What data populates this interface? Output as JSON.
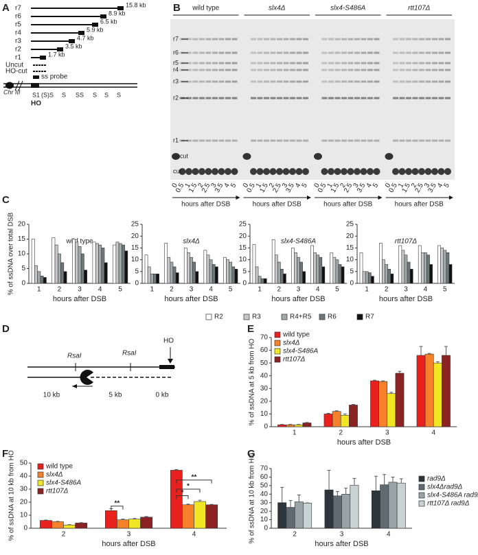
{
  "panel_labels": [
    "A",
    "B",
    "C",
    "D",
    "E",
    "F",
    "G"
  ],
  "diagram_a": {
    "rows": [
      "r7",
      "r6",
      "r5",
      "r4",
      "r3",
      "r2",
      "r1"
    ],
    "sizes": [
      "15.8 kb",
      "8.9 kb",
      "6.5 kb",
      "5.9 kb",
      "4.7 kb",
      "3.5 kb",
      "1.7 kb"
    ],
    "uncut": "Uncut",
    "ho_cut": "HO-cut",
    "probe": "ss probe",
    "chromosome": "Chr III",
    "sites": [
      "S",
      "1",
      "(S)",
      "S",
      "S",
      "S",
      "S",
      "S",
      "S",
      "S"
    ],
    "ho": "HO"
  },
  "gel": {
    "strains": [
      "wild type",
      "slx4Δ",
      "slx4-S486A",
      "rtt107Δ"
    ],
    "bands": [
      "r7",
      "r6",
      "r5",
      "r4",
      "r3",
      "r2",
      "r1",
      "uncut",
      "cut"
    ],
    "lanes": [
      "0",
      "0.5",
      "1",
      "1.5",
      "2",
      "2.5",
      "3",
      "3.5",
      "4",
      "5"
    ],
    "x_label": "hours after DSB"
  },
  "diagram_d": {
    "site1": "RsaI",
    "site2": "RsaI",
    "ho": "HO",
    "distances": [
      "10 kb",
      "5 kb",
      "0 kb"
    ]
  },
  "chart_data": [
    {
      "type": "bar",
      "title": "wild type",
      "y_label": "% of ssDNA over total DSB",
      "x_label": "hours after DSB",
      "categories": [
        "1",
        "2",
        "3",
        "4",
        "5"
      ],
      "ylim": [
        0,
        20
      ],
      "yticks": [
        0,
        5,
        10,
        15,
        20
      ],
      "series": [
        {
          "name": "R2",
          "color": "#ffffff",
          "values": [
            15,
            15.5,
            15,
            14,
            13
          ]
        },
        {
          "name": "R3",
          "color": "#c8c8c8",
          "values": [
            6,
            13,
            14,
            13.5,
            14
          ]
        },
        {
          "name": "R4+R5",
          "color": "#a0aaaa",
          "values": [
            4,
            10,
            12.5,
            13,
            13.5
          ]
        },
        {
          "name": "R6",
          "color": "#6e7878",
          "values": [
            2.5,
            7,
            10,
            12,
            13
          ]
        },
        {
          "name": "R7",
          "color": "#111111",
          "values": [
            2,
            4,
            4.5,
            7,
            11
          ]
        }
      ]
    },
    {
      "type": "bar",
      "title": "slx4Δ",
      "x_label": "hours after DSB",
      "categories": [
        "1",
        "2",
        "3",
        "4",
        "5"
      ],
      "ylim": [
        0,
        25
      ],
      "yticks": [
        0,
        5,
        10,
        15,
        20,
        25
      ],
      "series": [
        {
          "name": "R2",
          "color": "#ffffff",
          "values": [
            12,
            17,
            15,
            14,
            11
          ]
        },
        {
          "name": "R3",
          "color": "#c8c8c8",
          "values": [
            7,
            11,
            13,
            12,
            10
          ]
        },
        {
          "name": "R4+R5",
          "color": "#a0aaaa",
          "values": [
            4,
            9,
            11,
            10,
            9
          ]
        },
        {
          "name": "R6",
          "color": "#6e7878",
          "values": [
            4,
            7,
            9,
            8,
            7
          ]
        },
        {
          "name": "R7",
          "color": "#111111",
          "values": [
            4,
            4.5,
            5,
            7,
            6
          ]
        }
      ]
    },
    {
      "type": "bar",
      "title": "slx4-S486A",
      "x_label": "hours after DSB",
      "categories": [
        "1",
        "2",
        "3",
        "4",
        "5"
      ],
      "ylim": [
        0,
        25
      ],
      "yticks": [
        0,
        5,
        10,
        15,
        20,
        25
      ],
      "series": [
        {
          "name": "R2",
          "color": "#ffffff",
          "values": [
            16.5,
            18.5,
            15,
            16,
            13
          ]
        },
        {
          "name": "R3",
          "color": "#c8c8c8",
          "values": [
            7,
            12,
            13,
            13,
            11
          ]
        },
        {
          "name": "R4+R5",
          "color": "#a0aaaa",
          "values": [
            3,
            9,
            11,
            12,
            10
          ]
        },
        {
          "name": "R6",
          "color": "#6e7878",
          "values": [
            2,
            6,
            9,
            11,
            8
          ]
        },
        {
          "name": "R7",
          "color": "#111111",
          "values": [
            2,
            4,
            5,
            7,
            7
          ]
        }
      ]
    },
    {
      "type": "bar",
      "title": "rtt107Δ",
      "x_label": "hours after DSB",
      "categories": [
        "1",
        "2",
        "3",
        "4",
        "5"
      ],
      "ylim": [
        0,
        25
      ],
      "yticks": [
        0,
        5,
        10,
        15,
        20,
        25
      ],
      "series": [
        {
          "name": "R2",
          "color": "#ffffff",
          "values": [
            13,
            17,
            16,
            16,
            16
          ]
        },
        {
          "name": "R3",
          "color": "#c8c8c8",
          "values": [
            5,
            10,
            14,
            13,
            15
          ]
        },
        {
          "name": "R4+R5",
          "color": "#a0aaaa",
          "values": [
            5,
            8,
            12,
            13,
            14
          ]
        },
        {
          "name": "R6",
          "color": "#6e7878",
          "values": [
            4.5,
            6,
            9,
            12,
            13
          ]
        },
        {
          "name": "R7",
          "color": "#111111",
          "values": [
            3,
            4,
            6,
            8,
            8
          ]
        }
      ]
    },
    {
      "type": "bar",
      "y_label": "% of ssDNA at 5 kb from HO",
      "x_label": "hours after DSB",
      "categories": [
        "1",
        "2",
        "3",
        "4"
      ],
      "ylim": [
        0,
        70
      ],
      "yticks": [
        0,
        10,
        20,
        30,
        40,
        50,
        60,
        70
      ],
      "series": [
        {
          "name": "wild type",
          "color": "#e8211f",
          "values": [
            1.5,
            10,
            36,
            56
          ],
          "errors": [
            0.3,
            0.5,
            0.5,
            7
          ]
        },
        {
          "name": "slx4Δ",
          "color": "#f5822a",
          "values": [
            1.5,
            12,
            35.5,
            57
          ],
          "errors": [
            0.3,
            0.5,
            0.5,
            0.5
          ]
        },
        {
          "name": "slx4-S486A",
          "color": "#f0e623",
          "values": [
            1.5,
            9,
            26,
            50
          ],
          "errors": [
            0.3,
            1,
            1,
            1
          ]
        },
        {
          "name": "rtt107Δ",
          "color": "#8b2323",
          "values": [
            3,
            17,
            42,
            56
          ],
          "errors": [
            0.3,
            0.5,
            1.5,
            7
          ]
        }
      ]
    },
    {
      "type": "bar",
      "y_label": "% of ssDNA at 10 kb from HO",
      "x_label": "hours after DSB",
      "categories": [
        "2",
        "3",
        "4"
      ],
      "ylim": [
        0,
        50
      ],
      "yticks": [
        0,
        10,
        20,
        30,
        40,
        50
      ],
      "annotations": [
        "**",
        "*",
        "*",
        "**"
      ],
      "series": [
        {
          "name": "wild type",
          "color": "#e8211f",
          "values": [
            6,
            13.5,
            44.5
          ],
          "errors": [
            0.3,
            1.5,
            0.5
          ]
        },
        {
          "name": "slx4Δ",
          "color": "#f5822a",
          "values": [
            5,
            6.5,
            18
          ],
          "errors": [
            0.3,
            0.5,
            0.5
          ]
        },
        {
          "name": "slx4-S486A",
          "color": "#f0e623",
          "values": [
            2.5,
            7,
            20.5
          ],
          "errors": [
            0.3,
            0.5,
            1
          ]
        },
        {
          "name": "rtt107Δ",
          "color": "#8b2323",
          "values": [
            4,
            8.5,
            18
          ],
          "errors": [
            0.3,
            0.5,
            0.3
          ]
        }
      ]
    },
    {
      "type": "bar",
      "y_label": "% of ssDNA at 10 kb from HO",
      "x_label": "hours after DSB",
      "categories": [
        "2",
        "3",
        "4"
      ],
      "ylim": [
        0,
        70
      ],
      "yticks": [
        0,
        10,
        20,
        30,
        40,
        50,
        60,
        70
      ],
      "series": [
        {
          "name": "rad9Δ",
          "color": "#2d343a",
          "values": [
            30,
            45,
            44
          ],
          "errors": [
            18,
            23,
            17
          ]
        },
        {
          "name": "slx4Δrad9Δ",
          "color": "#5f6b70",
          "values": [
            24.5,
            38,
            51
          ],
          "errors": [
            8,
            5,
            12
          ]
        },
        {
          "name": "slx4-S486A rad9Δ",
          "color": "#97a3a5",
          "values": [
            31,
            40,
            54
          ],
          "errors": [
            8,
            7,
            6
          ]
        },
        {
          "name": "rtt107Δ rad9Δ",
          "color": "#c8d2d2",
          "values": [
            29.5,
            50.5,
            53
          ],
          "errors": [
            0.3,
            8,
            5
          ]
        }
      ]
    }
  ]
}
